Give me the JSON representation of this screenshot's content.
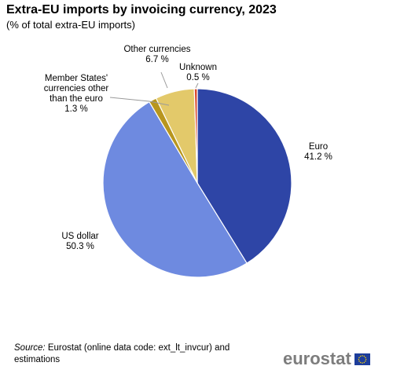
{
  "header": {
    "title": "Extra-EU imports by invoicing currency, 2023",
    "subtitle": "(% of total extra-EU imports)"
  },
  "chart_data": {
    "type": "pie",
    "title": "Extra-EU imports by invoicing currency, 2023",
    "subtitle": "(% of total extra-EU imports)",
    "unit": "%",
    "slices": [
      {
        "name": "Euro",
        "value": 41.2,
        "label_lines": [
          "Euro",
          "41.2 %"
        ],
        "color": "#2e45a6"
      },
      {
        "name": "US dollar",
        "value": 50.3,
        "label_lines": [
          "US dollar",
          "50.3 %"
        ],
        "color": "#6e8ae0"
      },
      {
        "name": "Member States' currencies other than the euro",
        "value": 1.3,
        "label_lines": [
          "Member States'",
          "currencies other",
          "than the euro",
          "1.3 %"
        ],
        "color": "#b8961e"
      },
      {
        "name": "Other currencies",
        "value": 6.7,
        "label_lines": [
          "Other currencies",
          "6.7 %"
        ],
        "color": "#e3c96a"
      },
      {
        "name": "Unknown",
        "value": 0.5,
        "label_lines": [
          "Unknown",
          "0.5 %"
        ],
        "color": "#d9472b"
      }
    ]
  },
  "footer": {
    "source_label": "Source:",
    "source_text": " Eurostat (online data code: ext_lt_invcur) and estimations",
    "logo_text": "eurostat"
  },
  "colors": {
    "flag_blue": "#1d3d9b",
    "flag_star": "#ffd700",
    "leader_line": "#9a9a9a"
  }
}
